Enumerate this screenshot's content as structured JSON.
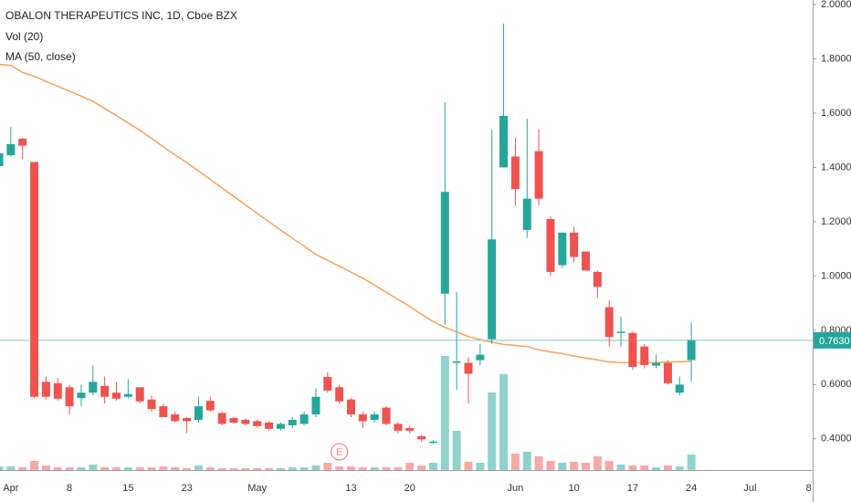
{
  "chart_data": {
    "type": "candlestick",
    "title": "OBALON THERAPEUTICS INC, 1D, Cboe BZX",
    "categories": [
      null,
      "Apr",
      null,
      null,
      null,
      null,
      "8",
      null,
      null,
      null,
      null,
      "15",
      null,
      null,
      null,
      null,
      "23",
      null,
      null,
      null,
      null,
      null,
      "May",
      null,
      null,
      null,
      null,
      null,
      null,
      null,
      "13",
      null,
      null,
      null,
      null,
      "20",
      null,
      null,
      null,
      null,
      null,
      null,
      null,
      null,
      "Jun",
      null,
      null,
      null,
      null,
      "10",
      null,
      null,
      null,
      null,
      "17",
      null,
      null,
      null,
      null,
      "24",
      null,
      null,
      null,
      null,
      "Jul",
      null,
      null,
      null,
      null,
      "8"
    ],
    "open": [
      1.405,
      1.445,
      1.506,
      1.42,
      0.61,
      0.605,
      0.59,
      0.55,
      0.57,
      0.595,
      0.57,
      0.555,
      0.59,
      0.545,
      0.52,
      0.49,
      0.477,
      0.47,
      0.54,
      0.495,
      0.477,
      0.47,
      0.465,
      0.46,
      0.437,
      0.45,
      0.455,
      0.49,
      0.628,
      0.59,
      0.545,
      0.49,
      0.47,
      0.515,
      0.455,
      0.44,
      0.41,
      0.385,
      0.935,
      0.68,
      0.68,
      0.69,
      0.767,
      1.4,
      1.44,
      1.17,
      1.46,
      1.21,
      1.04,
      1.16,
      1.09,
      1.015,
      0.885,
      0.79,
      0.79,
      0.74,
      0.67,
      0.68,
      0.57,
      0.69,
      null,
      null,
      null,
      null,
      null,
      null,
      null,
      null,
      null,
      null
    ],
    "high": [
      1.47,
      1.55,
      1.51,
      1.42,
      0.63,
      0.625,
      0.6,
      0.6,
      0.67,
      0.63,
      0.61,
      0.62,
      0.59,
      0.56,
      0.53,
      0.5,
      0.48,
      0.555,
      0.555,
      0.5,
      0.48,
      0.475,
      0.47,
      0.465,
      0.46,
      0.48,
      0.5,
      0.585,
      0.645,
      0.6,
      0.55,
      0.5,
      0.5,
      0.52,
      0.46,
      0.45,
      0.415,
      0.395,
      1.64,
      0.94,
      0.7,
      0.75,
      1.54,
      1.93,
      1.51,
      1.58,
      1.54,
      1.22,
      1.16,
      1.18,
      1.09,
      1.02,
      0.91,
      0.85,
      0.795,
      0.75,
      0.71,
      0.69,
      0.63,
      0.83,
      null,
      null,
      null,
      null,
      null,
      null,
      null,
      null,
      null,
      null
    ],
    "low": [
      1.4,
      1.44,
      1.43,
      0.55,
      0.545,
      0.54,
      0.49,
      0.52,
      0.56,
      0.53,
      0.54,
      0.55,
      0.53,
      0.5,
      0.48,
      0.46,
      0.42,
      0.46,
      0.5,
      0.45,
      0.455,
      0.45,
      0.44,
      0.43,
      0.43,
      0.44,
      0.45,
      0.48,
      0.57,
      0.53,
      0.48,
      0.44,
      0.46,
      0.45,
      0.42,
      0.42,
      0.39,
      0.38,
      0.82,
      0.58,
      0.53,
      0.67,
      0.75,
      1.4,
      1.26,
      1.14,
      1.26,
      1.0,
      1.03,
      1.05,
      1.02,
      0.92,
      0.74,
      0.74,
      0.655,
      0.66,
      0.66,
      0.6,
      0.56,
      0.61,
      null,
      null,
      null,
      null,
      null,
      null,
      null,
      null,
      null,
      null
    ],
    "close": [
      1.452,
      1.486,
      1.48,
      0.555,
      0.555,
      0.548,
      0.52,
      0.57,
      0.61,
      0.555,
      0.548,
      0.565,
      0.538,
      0.51,
      0.48,
      0.465,
      0.465,
      0.52,
      0.505,
      0.455,
      0.46,
      0.455,
      0.447,
      0.437,
      0.455,
      0.47,
      0.49,
      0.555,
      0.578,
      0.538,
      0.49,
      0.465,
      0.49,
      0.455,
      0.43,
      0.43,
      0.398,
      0.39,
      1.31,
      0.685,
      0.64,
      0.71,
      1.135,
      1.59,
      1.32,
      1.285,
      1.285,
      1.015,
      1.16,
      1.07,
      1.02,
      0.96,
      0.775,
      0.795,
      0.665,
      0.672,
      0.68,
      0.605,
      0.6,
      0.763,
      null,
      null,
      null,
      null,
      null,
      null,
      null,
      null,
      null,
      null
    ],
    "up_color": "#26a69a",
    "down_color": "#ef5350",
    "ylim": [
      0.285,
      2.017
    ],
    "yticks": [
      {
        "value": 0.4,
        "label": "0.4000"
      },
      {
        "value": 0.6,
        "label": "0.6000"
      },
      {
        "value": 0.8,
        "label": "0.8000"
      },
      {
        "value": 1.0,
        "label": "1.0000"
      },
      {
        "value": 1.2,
        "label": "1.2000"
      },
      {
        "value": 1.4,
        "label": "1.4000"
      },
      {
        "value": 1.6,
        "label": "1.6000"
      },
      {
        "value": 1.8,
        "label": "1.8000"
      },
      {
        "value": 2.0,
        "label": "2.0000"
      }
    ],
    "last_price": {
      "value": 0.763,
      "label": "0.7630"
    },
    "volume": {
      "name": "Vol (20)",
      "values": [
        4,
        4,
        3,
        10,
        5,
        3,
        3,
        3,
        6,
        3,
        3,
        3,
        3,
        3,
        4,
        3,
        2,
        5,
        3,
        2,
        2,
        2,
        2,
        2,
        2,
        3,
        3,
        5,
        8,
        4,
        4,
        3,
        3,
        3,
        3,
        8,
        5,
        8,
        125,
        43,
        9,
        8,
        85,
        105,
        18,
        20,
        15,
        10,
        8,
        9,
        8,
        15,
        10,
        6,
        5,
        5,
        3,
        5,
        4,
        17,
        null,
        null,
        null,
        null,
        null,
        null,
        null,
        null,
        null,
        null
      ]
    },
    "ma": {
      "name": "MA (50, close)",
      "color": "#f7a15a",
      "values": [
        1.78,
        1.776,
        1.75,
        1.736,
        1.717,
        1.699,
        1.681,
        1.663,
        1.643,
        1.617,
        1.591,
        1.564,
        1.537,
        1.507,
        1.476,
        1.446,
        1.418,
        1.387,
        1.356,
        1.324,
        1.293,
        1.262,
        1.231,
        1.2,
        1.169,
        1.139,
        1.11,
        1.08,
        1.058,
        1.036,
        1.014,
        0.992,
        0.966,
        0.94,
        0.914,
        0.888,
        0.859,
        0.832,
        0.811,
        0.794,
        0.777,
        0.766,
        0.756,
        0.748,
        0.744,
        0.74,
        0.728,
        0.72,
        0.714,
        0.705,
        0.698,
        0.691,
        0.683,
        0.681,
        0.68,
        0.68,
        0.681,
        0.683,
        0.684,
        0.685,
        null,
        null,
        null,
        null,
        null,
        null,
        null,
        null,
        null,
        null
      ]
    },
    "events": [
      {
        "text": "E",
        "index": 29
      }
    ]
  }
}
